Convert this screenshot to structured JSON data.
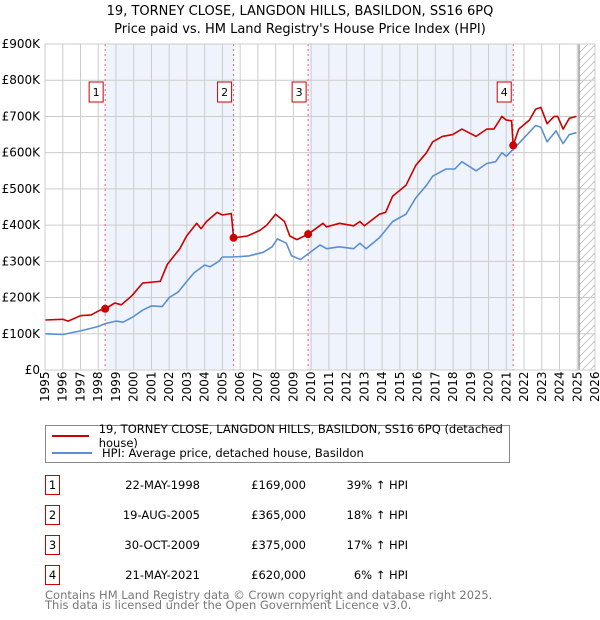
{
  "colors": {
    "property": "#cc0000",
    "hpi": "#5b8fd4",
    "shade": "#eef3fc",
    "grid": "#cccccc"
  },
  "chart_data": {
    "type": "line",
    "title": "19, TORNEY CLOSE, LANGDON HILLS, BASILDON, SS16 6PQ",
    "subtitle": "Price paid vs. HM Land Registry's House Price Index (HPI)",
    "xlim": [
      1995,
      2026
    ],
    "ylim": [
      0,
      900000
    ],
    "x_ticks": [
      "1995",
      "1996",
      "1997",
      "1998",
      "1999",
      "2000",
      "2001",
      "2002",
      "2003",
      "2004",
      "2005",
      "2006",
      "2007",
      "2008",
      "2009",
      "2010",
      "2011",
      "2012",
      "2013",
      "2014",
      "2015",
      "2016",
      "2017",
      "2018",
      "2019",
      "2020",
      "2021",
      "2022",
      "2023",
      "2024",
      "2025",
      "2026"
    ],
    "y_ticks": [
      {
        "value": 0,
        "label": "£0"
      },
      {
        "value": 100000,
        "label": "£100K"
      },
      {
        "value": 200000,
        "label": "£200K"
      },
      {
        "value": 300000,
        "label": "£300K"
      },
      {
        "value": 400000,
        "label": "£400K"
      },
      {
        "value": 500000,
        "label": "£500K"
      },
      {
        "value": 600000,
        "label": "£600K"
      },
      {
        "value": 700000,
        "label": "£700K"
      },
      {
        "value": 800000,
        "label": "£800K"
      },
      {
        "value": 900000,
        "label": "£900K"
      }
    ],
    "grid": true,
    "shaded_ranges": [
      [
        1998.39,
        2005.63
      ],
      [
        2009.83,
        2021.39
      ]
    ],
    "forecast_from": 2025.1,
    "series": [
      {
        "name": "19, TORNEY CLOSE, LANGDON HILLS, BASILDON, SS16 6PQ (detached house)",
        "color": "#cc0000",
        "x": [
          1995,
          1996,
          1996.3,
          1997,
          1997.6,
          1998.1,
          1998.39,
          1998.94,
          1999.3,
          1999.9,
          2000.5,
          2001.1,
          2001.5,
          2001.9,
          2002.6,
          2002.98,
          2003.55,
          2003.8,
          2004.1,
          2004.7,
          2005.0,
          2005.5,
          2005.63,
          2006.4,
          2007.1,
          2007.5,
          2008.0,
          2008.5,
          2008.8,
          2009.2,
          2009.83,
          2010.67,
          2010.87,
          2011.6,
          2012.4,
          2012.75,
          2013.0,
          2013.85,
          2014.2,
          2014.6,
          2015.35,
          2015.9,
          2016.5,
          2016.85,
          2017.4,
          2017.98,
          2018.5,
          2019.3,
          2019.9,
          2020.3,
          2020.75,
          2021.0,
          2021.3,
          2021.39,
          2021.7,
          2022.3,
          2022.65,
          2022.95,
          2023.3,
          2023.7,
          2023.9,
          2024.2,
          2024.55,
          2024.95
        ],
        "y": [
          138000,
          140000,
          135000,
          150000,
          152000,
          165000,
          169000,
          185000,
          180000,
          205000,
          240000,
          243000,
          245000,
          292000,
          335000,
          370000,
          405000,
          390000,
          410000,
          435000,
          428000,
          432000,
          365000,
          370000,
          385000,
          400000,
          430000,
          410000,
          370000,
          360000,
          375000,
          405000,
          395000,
          405000,
          398000,
          410000,
          398000,
          430000,
          435000,
          480000,
          510000,
          565000,
          600000,
          630000,
          645000,
          650000,
          665000,
          645000,
          665000,
          665000,
          700000,
          690000,
          688000,
          620000,
          665000,
          690000,
          720000,
          725000,
          680000,
          700000,
          700000,
          665000,
          695000,
          700000
        ]
      },
      {
        "name": "HPI: Average price, detached house, Basildon",
        "color": "#5b8fd4",
        "x": [
          1995,
          1996,
          1997,
          1998,
          1998.39,
          1999,
          1999.4,
          2000,
          2000.5,
          2001,
          2001.6,
          2002,
          2002.5,
          2003,
          2003.4,
          2004,
          2004.3,
          2004.8,
          2005,
          2005.6,
          2006.5,
          2007.3,
          2007.8,
          2008.1,
          2008.6,
          2008.9,
          2009.4,
          2010.5,
          2010.87,
          2011.6,
          2012.4,
          2012.75,
          2013.1,
          2013.85,
          2014.6,
          2015.35,
          2015.9,
          2016.5,
          2016.85,
          2017.6,
          2018.1,
          2018.5,
          2019.3,
          2019.9,
          2020.4,
          2020.75,
          2021.0,
          2021.7,
          2022.65,
          2022.95,
          2023.3,
          2023.8,
          2024.2,
          2024.55,
          2024.95
        ],
        "y": [
          100000,
          98000,
          108000,
          120000,
          128000,
          135000,
          132000,
          148000,
          165000,
          177000,
          175000,
          200000,
          215000,
          245000,
          268000,
          290000,
          285000,
          300000,
          312000,
          312000,
          315000,
          325000,
          340000,
          362000,
          350000,
          315000,
          305000,
          345000,
          335000,
          340000,
          335000,
          350000,
          335000,
          365000,
          410000,
          430000,
          475000,
          510000,
          535000,
          555000,
          555000,
          575000,
          550000,
          570000,
          575000,
          600000,
          590000,
          625000,
          675000,
          670000,
          630000,
          660000,
          625000,
          650000,
          655000
        ]
      }
    ],
    "sales": [
      {
        "num": "1",
        "x": 1998.39,
        "y": 169000
      },
      {
        "num": "2",
        "x": 2005.63,
        "y": 365000
      },
      {
        "num": "3",
        "x": 2009.83,
        "y": 375000
      },
      {
        "num": "4",
        "x": 2021.39,
        "y": 620000
      }
    ]
  },
  "title": {
    "line1": "19, TORNEY CLOSE, LANGDON HILLS, BASILDON, SS16 6PQ",
    "line2": "Price paid vs. HM Land Registry's House Price Index (HPI)"
  },
  "legend": {
    "property": "19, TORNEY CLOSE, LANGDON HILLS, BASILDON, SS16 6PQ (detached house)",
    "hpi": "HPI: Average price, detached house, Basildon"
  },
  "sales_table": [
    {
      "num": "1",
      "date": "22-MAY-1998",
      "price": "£169,000",
      "hpi": "39% ↑ HPI"
    },
    {
      "num": "2",
      "date": "19-AUG-2005",
      "price": "£365,000",
      "hpi": "18% ↑ HPI"
    },
    {
      "num": "3",
      "date": "30-OCT-2009",
      "price": "£375,000",
      "hpi": "17% ↑ HPI"
    },
    {
      "num": "4",
      "date": "21-MAY-2021",
      "price": "£620,000",
      "hpi": "6% ↑ HPI"
    }
  ],
  "footer": {
    "line1": "Contains HM Land Registry data © Crown copyright and database right 2025.",
    "line2": "This data is licensed under the Open Government Licence v3.0."
  }
}
